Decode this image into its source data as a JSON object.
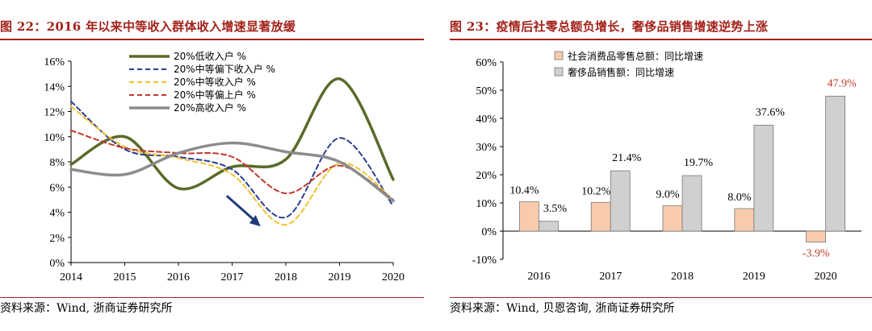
{
  "chart_data": [
    {
      "type": "line",
      "title": "图 22：2016 年以来中等收入群体收入增速显著放缓",
      "source": "资料来源：Wind, 浙商证券研究所",
      "x": [
        2014,
        2015,
        2016,
        2017,
        2018,
        2019,
        2020
      ],
      "xlim": [
        2014,
        2020
      ],
      "ylim": [
        0,
        16
      ],
      "yticks": [
        0,
        2,
        4,
        6,
        8,
        10,
        12,
        14,
        16
      ],
      "ytick_labels": [
        "0%",
        "2%",
        "4%",
        "6%",
        "8%",
        "10%",
        "12%",
        "14%",
        "16%"
      ],
      "grid": false,
      "legend_position": "top-center",
      "annotation": "downward arrow around 2017–2018",
      "series": [
        {
          "name": "20%低收入户 %",
          "color": "#5a6b2a",
          "style": "solid",
          "values": [
            7.8,
            10.0,
            5.9,
            7.6,
            8.2,
            14.6,
            6.6
          ]
        },
        {
          "name": "20%中等偏下收入户 %",
          "color": "#2b3d8f",
          "style": "dashed",
          "values": [
            12.8,
            9.0,
            8.4,
            7.4,
            3.6,
            9.9,
            4.5
          ]
        },
        {
          "name": "20%中等收入户 %",
          "color": "#f1c232",
          "style": "dashed",
          "values": [
            12.4,
            9.2,
            8.3,
            7.0,
            3.0,
            7.9,
            5.0
          ]
        },
        {
          "name": "20%中等偏上户 %",
          "color": "#c0392b",
          "style": "dashed",
          "values": [
            10.5,
            9.1,
            8.7,
            8.4,
            5.5,
            7.7,
            5.0
          ]
        },
        {
          "name": "20%高收入户 %",
          "color": "#8c8c8c",
          "style": "solid",
          "values": [
            7.4,
            7.0,
            8.7,
            9.5,
            8.8,
            8.0,
            4.9
          ]
        }
      ]
    },
    {
      "type": "bar",
      "title": "图 23：疫情后社零总额负增长，奢侈品销售增速逆势上涨",
      "source": "资料来源：Wind, 贝恩咨询, 浙商证券研究所",
      "categories": [
        "2016",
        "2017",
        "2018",
        "2019",
        "2020"
      ],
      "ylim": [
        -10,
        60
      ],
      "yticks": [
        -10,
        0,
        10,
        20,
        30,
        40,
        50,
        60
      ],
      "ytick_labels": [
        "-10%",
        "0%",
        "10%",
        "20%",
        "30%",
        "40%",
        "50%",
        "60%"
      ],
      "grid": false,
      "legend_position": "top-left",
      "series": [
        {
          "name": "社会消费品零售总额：同比增速",
          "color": "#f8cbad",
          "values": [
            10.4,
            10.2,
            9.0,
            8.0,
            -3.9
          ],
          "labels": [
            "10.4%",
            "10.2%",
            "9.0%",
            "8.0%",
            "-3.9%"
          ]
        },
        {
          "name": "奢侈品销售额：同比增速",
          "color": "#d0d0d0",
          "values": [
            3.5,
            21.4,
            19.7,
            37.6,
            47.9
          ],
          "labels": [
            "3.5%",
            "21.4%",
            "19.7%",
            "37.6%",
            "47.9%"
          ]
        }
      ],
      "highlight_label_color": "#c0392b"
    }
  ]
}
